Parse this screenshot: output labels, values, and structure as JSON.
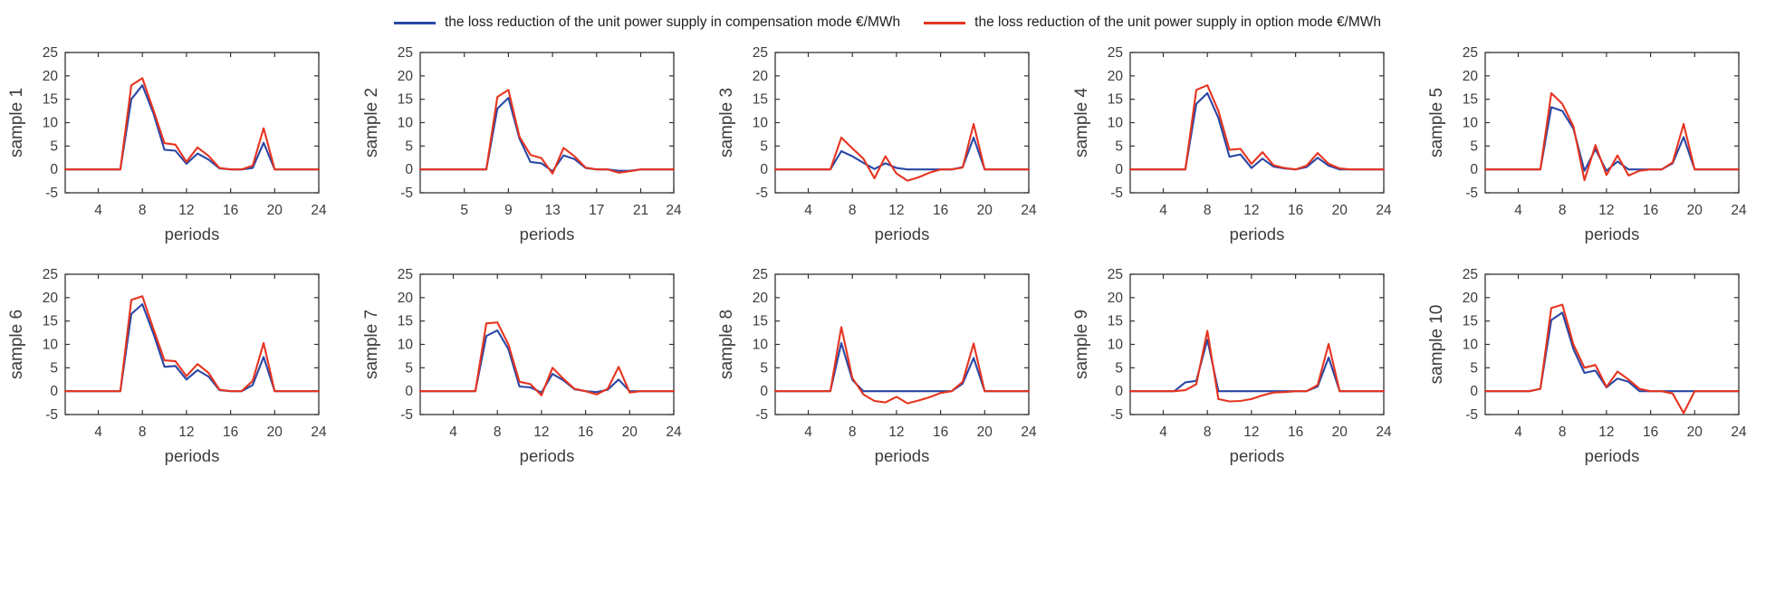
{
  "legend": {
    "items": [
      {
        "label": "the loss reduction of the unit power supply in compensation mode €/MWh",
        "color": "#2a47a5"
      },
      {
        "label": "the loss reduction of the unit power supply in option mode  €/MWh",
        "color": "#e63420"
      }
    ]
  },
  "axis_style": {
    "frame_color": "#333333",
    "text_color": "#3c3c3c",
    "grid": "off",
    "box": "on"
  },
  "chart_data": [
    {
      "type": "line",
      "ylabel": "sample 1",
      "xlabel": "periods",
      "ylim": [
        -5,
        25
      ],
      "xlim": [
        1,
        24
      ],
      "y_ticks": [
        -5,
        0,
        5,
        10,
        15,
        20,
        25
      ],
      "x_ticks": [
        4,
        8,
        12,
        16,
        20,
        24
      ],
      "x": [
        1,
        2,
        3,
        4,
        5,
        6,
        7,
        8,
        9,
        10,
        11,
        12,
        13,
        14,
        15,
        16,
        17,
        18,
        19,
        20,
        21,
        22,
        23,
        24
      ],
      "series": [
        {
          "name": "compensation",
          "values": [
            0,
            0,
            0,
            0,
            0,
            0,
            15,
            18,
            12,
            4.2,
            4,
            1.2,
            3.4,
            2.1,
            0.2,
            0,
            0,
            0.3,
            5.7,
            0,
            0,
            0,
            0,
            0
          ]
        },
        {
          "name": "option",
          "values": [
            0,
            0,
            0,
            0,
            0,
            0,
            18,
            19.5,
            12.7,
            5.6,
            5.3,
            1.6,
            4.7,
            2.9,
            0.3,
            0,
            0,
            0.8,
            8.8,
            0,
            0,
            0,
            0,
            0
          ]
        }
      ]
    },
    {
      "type": "line",
      "ylabel": "sample 2",
      "xlabel": "periods",
      "ylim": [
        -5,
        25
      ],
      "xlim": [
        1,
        24
      ],
      "y_ticks": [
        -5,
        0,
        5,
        10,
        15,
        20,
        25
      ],
      "x_ticks": [
        5,
        9,
        13,
        17,
        21,
        24
      ],
      "x": [
        1,
        2,
        3,
        4,
        5,
        6,
        7,
        8,
        9,
        10,
        11,
        12,
        13,
        14,
        15,
        16,
        17,
        18,
        19,
        20,
        21,
        22,
        23,
        24
      ],
      "series": [
        {
          "name": "compensation",
          "values": [
            0,
            0,
            0,
            0,
            0,
            0,
            0,
            13,
            15.3,
            6.6,
            1.6,
            1.3,
            -0.4,
            3,
            2.2,
            0.3,
            0,
            0,
            -0.3,
            -0.3,
            0,
            0,
            0,
            0
          ]
        },
        {
          "name": "option",
          "values": [
            0,
            0,
            0,
            0,
            0,
            0,
            0,
            15.5,
            17,
            7,
            3.1,
            2.4,
            -0.9,
            4.6,
            2.8,
            0.4,
            0,
            0,
            -0.7,
            -0.4,
            0,
            0,
            0,
            0
          ]
        }
      ]
    },
    {
      "type": "line",
      "ylabel": "sample 3",
      "xlabel": "periods",
      "ylim": [
        -5,
        25
      ],
      "xlim": [
        1,
        24
      ],
      "y_ticks": [
        -5,
        0,
        5,
        10,
        15,
        20,
        25
      ],
      "x_ticks": [
        4,
        8,
        12,
        16,
        20,
        24
      ],
      "x": [
        1,
        2,
        3,
        4,
        5,
        6,
        7,
        8,
        9,
        10,
        11,
        12,
        13,
        14,
        15,
        16,
        17,
        18,
        19,
        20,
        21,
        22,
        23,
        24
      ],
      "series": [
        {
          "name": "compensation",
          "values": [
            0,
            0,
            0,
            0,
            0,
            0,
            3.9,
            2.8,
            1.4,
            0.1,
            1.3,
            0.3,
            0,
            0,
            0,
            0,
            0,
            0.5,
            6.8,
            0,
            0,
            0,
            0,
            0
          ]
        },
        {
          "name": "option",
          "values": [
            0,
            0,
            0,
            0,
            0,
            0,
            6.8,
            4.5,
            2.3,
            -1.9,
            2.8,
            -0.9,
            -2.4,
            -1.7,
            -0.7,
            0,
            0,
            0.4,
            9.7,
            0,
            0,
            0,
            0,
            0
          ]
        }
      ]
    },
    {
      "type": "line",
      "ylabel": "sample 4",
      "xlabel": "periods",
      "ylim": [
        -5,
        25
      ],
      "xlim": [
        1,
        24
      ],
      "y_ticks": [
        -5,
        0,
        5,
        10,
        15,
        20,
        25
      ],
      "x_ticks": [
        4,
        8,
        12,
        16,
        20,
        24
      ],
      "x": [
        1,
        2,
        3,
        4,
        5,
        6,
        7,
        8,
        9,
        10,
        11,
        12,
        13,
        14,
        15,
        16,
        17,
        18,
        19,
        20,
        21,
        22,
        23,
        24
      ],
      "series": [
        {
          "name": "compensation",
          "values": [
            0,
            0,
            0,
            0,
            0,
            0,
            14,
            16.3,
            11,
            2.7,
            3.2,
            0.3,
            2.3,
            0.6,
            0.2,
            0,
            0.5,
            2.5,
            0.8,
            0,
            0,
            0,
            0,
            0
          ]
        },
        {
          "name": "option",
          "values": [
            0,
            0,
            0,
            0,
            0,
            0,
            17,
            18,
            12.5,
            4.2,
            4.4,
            1.2,
            3.7,
            0.9,
            0.3,
            0,
            0.8,
            3.5,
            1.2,
            0.2,
            0,
            0,
            0,
            0
          ]
        }
      ]
    },
    {
      "type": "line",
      "ylabel": "sample 5",
      "xlabel": "periods",
      "ylim": [
        -5,
        25
      ],
      "xlim": [
        1,
        24
      ],
      "y_ticks": [
        -5,
        0,
        5,
        10,
        15,
        20,
        25
      ],
      "x_ticks": [
        4,
        8,
        12,
        16,
        20,
        24
      ],
      "x": [
        1,
        2,
        3,
        4,
        5,
        6,
        7,
        8,
        9,
        10,
        11,
        12,
        13,
        14,
        15,
        16,
        17,
        18,
        19,
        20,
        21,
        22,
        23,
        24
      ],
      "series": [
        {
          "name": "compensation",
          "values": [
            0,
            0,
            0,
            0,
            0,
            0,
            13.3,
            12.5,
            8.7,
            -0.3,
            4.3,
            -0.3,
            1.7,
            0,
            0,
            0,
            0,
            1.3,
            6.9,
            0,
            0,
            0,
            0,
            0
          ]
        },
        {
          "name": "option",
          "values": [
            0,
            0,
            0,
            0,
            0,
            0,
            16.3,
            14,
            9.2,
            -2.3,
            5.2,
            -1.2,
            3,
            -1.3,
            -0.3,
            0,
            0,
            1.5,
            9.7,
            0,
            0,
            0,
            0,
            0
          ]
        }
      ]
    },
    {
      "type": "line",
      "ylabel": "sample 6",
      "xlabel": "periods",
      "ylim": [
        -5,
        25
      ],
      "xlim": [
        1,
        24
      ],
      "y_ticks": [
        -5,
        0,
        5,
        10,
        15,
        20,
        25
      ],
      "x_ticks": [
        4,
        8,
        12,
        16,
        20,
        24
      ],
      "x": [
        1,
        2,
        3,
        4,
        5,
        6,
        7,
        8,
        9,
        10,
        11,
        12,
        13,
        14,
        15,
        16,
        17,
        18,
        19,
        20,
        21,
        22,
        23,
        24
      ],
      "series": [
        {
          "name": "compensation",
          "values": [
            0,
            0,
            0,
            0,
            0,
            0,
            16.5,
            18.6,
            12.3,
            5.2,
            5.4,
            2.5,
            4.5,
            3.1,
            0.2,
            0,
            0,
            1.3,
            7.3,
            0,
            0,
            0,
            0,
            0
          ]
        },
        {
          "name": "option",
          "values": [
            0,
            0,
            0,
            0,
            0,
            0,
            19.5,
            20.3,
            13.3,
            6.6,
            6.4,
            3.2,
            5.8,
            3.9,
            0.3,
            0,
            0,
            2.2,
            10.3,
            0,
            0,
            0,
            0,
            0
          ]
        }
      ]
    },
    {
      "type": "line",
      "ylabel": "sample 7",
      "xlabel": "periods",
      "ylim": [
        -5,
        25
      ],
      "xlim": [
        1,
        24
      ],
      "y_ticks": [
        -5,
        0,
        5,
        10,
        15,
        20,
        25
      ],
      "x_ticks": [
        4,
        8,
        12,
        16,
        20,
        24
      ],
      "x": [
        1,
        2,
        3,
        4,
        5,
        6,
        7,
        8,
        9,
        10,
        11,
        12,
        13,
        14,
        15,
        16,
        17,
        18,
        19,
        20,
        21,
        22,
        23,
        24
      ],
      "series": [
        {
          "name": "compensation",
          "values": [
            0,
            0,
            0,
            0,
            0,
            0,
            11.8,
            13,
            9,
            1,
            0.8,
            -0.3,
            3.7,
            2.3,
            0.4,
            0,
            -0.2,
            0.3,
            2.5,
            0,
            0,
            0,
            0,
            0
          ]
        },
        {
          "name": "option",
          "values": [
            0,
            0,
            0,
            0,
            0,
            0,
            14.5,
            14.7,
            10,
            2,
            1.5,
            -0.9,
            5,
            2.6,
            0.5,
            0,
            -0.7,
            0.5,
            5.2,
            -0.3,
            0,
            0,
            0,
            0
          ]
        }
      ]
    },
    {
      "type": "line",
      "ylabel": "sample 8",
      "xlabel": "periods",
      "ylim": [
        -5,
        25
      ],
      "xlim": [
        1,
        24
      ],
      "y_ticks": [
        -5,
        0,
        5,
        10,
        15,
        20,
        25
      ],
      "x_ticks": [
        4,
        8,
        12,
        16,
        20,
        24
      ],
      "x": [
        1,
        2,
        3,
        4,
        5,
        6,
        7,
        8,
        9,
        10,
        11,
        12,
        13,
        14,
        15,
        16,
        17,
        18,
        19,
        20,
        21,
        22,
        23,
        24
      ],
      "series": [
        {
          "name": "compensation",
          "values": [
            0,
            0,
            0,
            0,
            0,
            0,
            10.3,
            2.4,
            0,
            0,
            0,
            0,
            0,
            0,
            0,
            0,
            0,
            1.6,
            7.1,
            0,
            0,
            0,
            0,
            0
          ]
        },
        {
          "name": "option",
          "values": [
            0,
            0,
            0,
            0,
            0,
            0,
            13.7,
            2.8,
            -0.7,
            -2.1,
            -2.4,
            -1.2,
            -2.6,
            -2,
            -1.3,
            -0.4,
            0,
            2,
            10.2,
            0,
            0,
            0,
            0,
            0
          ]
        }
      ]
    },
    {
      "type": "line",
      "ylabel": "sample 9",
      "xlabel": "periods",
      "ylim": [
        -5,
        25
      ],
      "xlim": [
        1,
        24
      ],
      "y_ticks": [
        -5,
        0,
        5,
        10,
        15,
        20,
        25
      ],
      "x_ticks": [
        4,
        8,
        12,
        16,
        20,
        24
      ],
      "x": [
        1,
        2,
        3,
        4,
        5,
        6,
        7,
        8,
        9,
        10,
        11,
        12,
        13,
        14,
        15,
        16,
        17,
        18,
        19,
        20,
        21,
        22,
        23,
        24
      ],
      "series": [
        {
          "name": "compensation",
          "values": [
            0,
            0,
            0,
            0,
            0,
            1.9,
            2.2,
            11,
            0,
            0,
            0,
            0,
            0,
            0,
            0,
            0,
            0,
            1,
            7.2,
            0,
            0,
            0,
            0,
            0
          ]
        },
        {
          "name": "option",
          "values": [
            0,
            0,
            0,
            0,
            0,
            0.2,
            1.5,
            12.9,
            -1.7,
            -2.2,
            -2.1,
            -1.7,
            -0.9,
            -0.3,
            -0.2,
            0,
            0,
            1.3,
            10.1,
            0,
            0,
            0,
            0,
            0
          ]
        }
      ]
    },
    {
      "type": "line",
      "ylabel": "sample 10",
      "xlabel": "periods",
      "ylim": [
        -5,
        25
      ],
      "xlim": [
        1,
        24
      ],
      "y_ticks": [
        -5,
        0,
        5,
        10,
        15,
        20,
        25
      ],
      "x_ticks": [
        4,
        8,
        12,
        16,
        20,
        24
      ],
      "x": [
        1,
        2,
        3,
        4,
        5,
        6,
        7,
        8,
        9,
        10,
        11,
        12,
        13,
        14,
        15,
        16,
        17,
        18,
        19,
        20,
        21,
        22,
        23,
        24
      ],
      "series": [
        {
          "name": "compensation",
          "values": [
            0,
            0,
            0,
            0,
            0,
            0.5,
            15.2,
            16.8,
            9,
            3.9,
            4.4,
            0.8,
            2.7,
            2,
            0,
            0,
            0,
            0,
            0,
            0,
            0,
            0,
            0,
            0
          ]
        },
        {
          "name": "option",
          "values": [
            0,
            0,
            0,
            0,
            0,
            0.5,
            17.8,
            18.5,
            10,
            5,
            5.6,
            0.9,
            4.2,
            2.5,
            0.5,
            0,
            0,
            -0.5,
            -4.7,
            0,
            0,
            0,
            0,
            0
          ]
        }
      ]
    }
  ]
}
